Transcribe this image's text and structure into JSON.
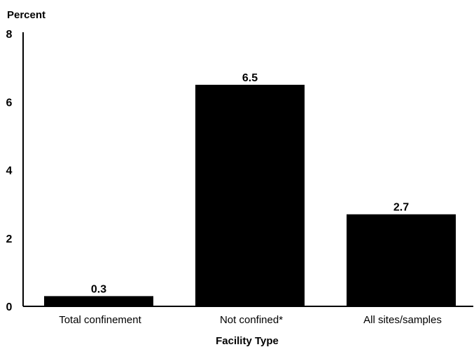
{
  "chart_data": {
    "type": "bar",
    "title": "",
    "ylabel": "Percent",
    "xlabel": "Facility Type",
    "categories": [
      "Total confinement",
      "Not confined*",
      "All sites/samples"
    ],
    "values": [
      0.3,
      6.5,
      2.7
    ],
    "value_labels": [
      "0.3",
      "6.5",
      "2.7"
    ],
    "ylim": [
      0,
      8
    ],
    "yticks": [
      0,
      2,
      4,
      6,
      8
    ],
    "grid": false,
    "legend": "none",
    "bar_color": "#000000"
  }
}
